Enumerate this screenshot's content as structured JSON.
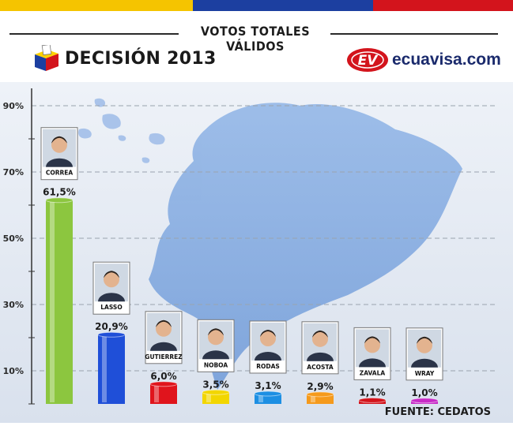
{
  "header": {
    "title": "VOTOS TOTALES VÁLIDOS",
    "left_brand": "DECISIÓN 2013",
    "right_brand": "ecuavisa.com",
    "flag_colors": [
      "#f5c400",
      "#1c3fa0",
      "#d3141c"
    ]
  },
  "footer": {
    "source": "FUENTE: CEDATOS"
  },
  "chart_data": {
    "type": "bar",
    "title": "VOTOS TOTALES VÁLIDOS",
    "xlabel": "",
    "ylabel": "",
    "ylim": [
      0,
      100
    ],
    "ytick_labels": [
      "90%",
      "70%",
      "50%",
      "30%",
      "10%"
    ],
    "yticks": [
      90,
      70,
      50,
      30,
      10
    ],
    "grid": true,
    "categories": [
      "CORREA",
      "LASSO",
      "GUTIERREZ",
      "NOBOA",
      "RODAS",
      "ACOSTA",
      "ZAVALA",
      "WRAY"
    ],
    "values": [
      61.5,
      20.9,
      6.0,
      3.5,
      3.1,
      2.9,
      1.1,
      1.0
    ],
    "value_labels": [
      "61,5%",
      "20,9%",
      "6,0%",
      "3,5%",
      "3,1%",
      "2,9%",
      "1,1%",
      "1,0%"
    ],
    "bar_colors": [
      "#8cc63f",
      "#1f4fd8",
      "#e0141c",
      "#f2d600",
      "#1d8fe3",
      "#f59a1c",
      "#d3141c",
      "#c82bc7"
    ]
  }
}
